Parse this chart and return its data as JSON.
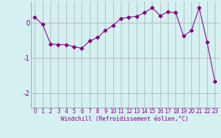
{
  "x": [
    0,
    1,
    2,
    3,
    4,
    5,
    6,
    7,
    8,
    9,
    10,
    11,
    12,
    13,
    14,
    15,
    16,
    17,
    18,
    19,
    20,
    21,
    22,
    23
  ],
  "y": [
    0.15,
    -0.05,
    -0.6,
    -0.62,
    -0.62,
    -0.68,
    -0.72,
    -0.52,
    -0.42,
    -0.22,
    -0.08,
    0.12,
    0.15,
    0.18,
    0.28,
    0.42,
    0.2,
    0.3,
    0.28,
    -0.38,
    -0.22,
    0.42,
    -0.55,
    -1.65
  ],
  "line_color": "#880088",
  "marker": "D",
  "markersize": 2.5,
  "linewidth": 0.8,
  "background_color": "#d4f0f0",
  "grid_color": "#aaaaaa",
  "xlabel": "Windchill (Refroidissement éolien,°C)",
  "xlabel_fontsize": 6,
  "tick_fontsize": 5.5,
  "ytick_fontsize": 7,
  "yticks": [
    -2,
    -1,
    0
  ],
  "ylim": [
    -2.4,
    0.6
  ],
  "xlim": [
    -0.5,
    23.5
  ]
}
